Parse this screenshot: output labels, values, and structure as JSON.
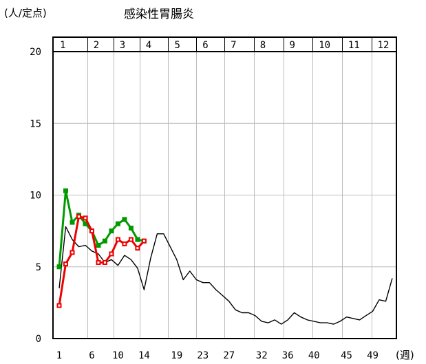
{
  "chart_data": {
    "type": "line",
    "title": "感染性胃腸炎",
    "ylabel": "(人/定点)",
    "xlabel": "(週)",
    "ylim": [
      0,
      20
    ],
    "yticks": [
      0,
      5,
      10,
      15,
      20
    ],
    "xlim": [
      1,
      52
    ],
    "xticks": [
      1,
      6,
      10,
      14,
      19,
      23,
      27,
      32,
      36,
      40,
      45,
      49
    ],
    "months": [
      "1",
      "2",
      "3",
      "4",
      "5",
      "6",
      "7",
      "8",
      "9",
      "10",
      "11",
      "12"
    ],
    "month_bounds": [
      1,
      5.3,
      9.3,
      13.3,
      17.7,
      22.0,
      26.3,
      30.8,
      35.3,
      39.8,
      44.3,
      48.8,
      52.5
    ],
    "grid": true,
    "series": [
      {
        "color": "#000000",
        "marker": "none",
        "x": [
          1,
          2,
          3,
          4,
          5,
          6,
          7,
          8,
          9,
          10,
          11,
          12,
          13,
          14,
          15,
          16,
          17,
          18,
          19,
          20,
          21,
          22,
          23,
          24,
          25,
          26,
          27,
          28,
          29,
          30,
          31,
          32,
          33,
          34,
          35,
          36,
          37,
          38,
          39,
          40,
          41,
          42,
          43,
          44,
          45,
          46,
          47,
          48,
          49,
          50,
          51,
          52
        ],
        "y": [
          3.5,
          7.8,
          6.9,
          6.4,
          6.5,
          6.1,
          5.9,
          5.3,
          5.5,
          5.1,
          5.8,
          5.5,
          4.9,
          3.4,
          5.6,
          7.3,
          7.3,
          6.4,
          5.5,
          4.1,
          4.7,
          4.1,
          3.9,
          3.9,
          3.4,
          3.0,
          2.6,
          2.0,
          1.8,
          1.8,
          1.6,
          1.2,
          1.1,
          1.3,
          1.0,
          1.3,
          1.8,
          1.5,
          1.3,
          1.2,
          1.1,
          1.1,
          1.0,
          1.2,
          1.5,
          1.4,
          1.3,
          1.6,
          1.9,
          2.7,
          2.6,
          4.2
        ]
      },
      {
        "color": "#009900",
        "marker": "square",
        "x": [
          1,
          2,
          3,
          4,
          5,
          6,
          7,
          8,
          9,
          10,
          11,
          12,
          13,
          14
        ],
        "y": [
          5.0,
          10.3,
          8.1,
          8.6,
          8.0,
          7.5,
          6.5,
          6.8,
          7.5,
          8.0,
          8.3,
          7.7,
          6.9,
          6.8
        ]
      },
      {
        "color": "#ee0000",
        "marker": "square-open",
        "x": [
          1,
          2,
          3,
          4,
          5,
          6,
          7,
          8,
          9,
          10,
          11,
          12,
          13,
          14
        ],
        "y": [
          2.3,
          5.2,
          6.0,
          8.5,
          8.4,
          7.5,
          5.3,
          5.3,
          5.9,
          6.9,
          6.6,
          6.9,
          6.3,
          6.8
        ]
      }
    ]
  }
}
